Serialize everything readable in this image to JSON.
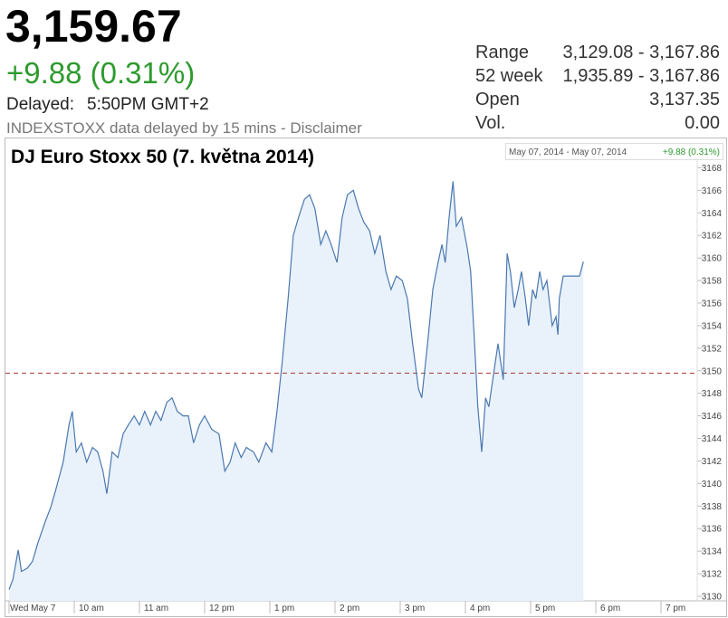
{
  "header": {
    "price": "3,159.67",
    "change": "+9.88 (0.31%)",
    "delayed_label": "Delayed:",
    "delayed_time": "5:50PM GMT+2",
    "note": "INDEXSTOXX data delayed by 15 mins - Disclaimer",
    "stats": [
      [
        "Range",
        "3,129.08 - 3,167.86"
      ],
      [
        "52 week",
        "1,935.89 - 3,167.86"
      ],
      [
        "Open",
        "3,137.35"
      ],
      [
        "Vol.",
        "0.00"
      ]
    ]
  },
  "chart_data": {
    "type": "line",
    "title": "DJ Euro Stoxx 50 (7. května 2014)",
    "range_label": "May 07, 2014 - May 07, 2014",
    "change_label": "+9.88 (0.31%)",
    "color": "#4a78b0",
    "fill_color": "#e9f2fb",
    "reference_line": 3149.79,
    "reference_color": "#a33a3a",
    "x": [
      9.0,
      9.06,
      9.14,
      9.19,
      9.28,
      9.36,
      9.44,
      9.56,
      9.64,
      9.72,
      9.83,
      9.92,
      9.97,
      10.03,
      10.11,
      10.19,
      10.28,
      10.36,
      10.44,
      10.5,
      10.58,
      10.67,
      10.75,
      10.83,
      10.92,
      11.0,
      11.08,
      11.17,
      11.25,
      11.33,
      11.42,
      11.5,
      11.58,
      11.67,
      11.75,
      11.83,
      11.92,
      12.0,
      12.11,
      12.22,
      12.31,
      12.39,
      12.47,
      12.56,
      12.64,
      12.75,
      12.83,
      12.94,
      13.03,
      13.11,
      13.19,
      13.28,
      13.36,
      13.44,
      13.53,
      13.61,
      13.69,
      13.78,
      13.86,
      13.94,
      14.03,
      14.11,
      14.19,
      14.28,
      14.36,
      14.44,
      14.53,
      14.61,
      14.69,
      14.78,
      14.86,
      14.94,
      15.03,
      15.11,
      15.19,
      15.28,
      15.33,
      15.42,
      15.5,
      15.58,
      15.64,
      15.69,
      15.75,
      15.81,
      15.86,
      15.94,
      16.03,
      16.08,
      16.14,
      16.19,
      16.25,
      16.31,
      16.36,
      16.42,
      16.5,
      16.58,
      16.64,
      16.69,
      16.75,
      16.81,
      16.86,
      16.92,
      16.97,
      17.03,
      17.08,
      17.14,
      17.19,
      17.25,
      17.33,
      17.39,
      17.42,
      17.44,
      17.5,
      17.61,
      17.75,
      17.81
    ],
    "values": [
      3130.6,
      3131.5,
      3134.1,
      3132.2,
      3132.5,
      3133.1,
      3134.7,
      3136.7,
      3137.9,
      3139.5,
      3141.9,
      3145.2,
      3146.4,
      3142.8,
      3143.6,
      3141.9,
      3143.2,
      3142.8,
      3141.1,
      3139.1,
      3142.8,
      3142.3,
      3144.4,
      3145.2,
      3146.0,
      3145.2,
      3146.4,
      3145.2,
      3146.4,
      3145.6,
      3147.2,
      3147.6,
      3146.4,
      3146.0,
      3146.0,
      3143.6,
      3145.2,
      3146.0,
      3144.8,
      3144.4,
      3141.1,
      3141.9,
      3143.6,
      3142.3,
      3143.2,
      3142.8,
      3141.9,
      3143.6,
      3142.8,
      3146.4,
      3150.8,
      3156.4,
      3162.0,
      3163.6,
      3165.2,
      3165.6,
      3164.4,
      3161.2,
      3162.4,
      3161.2,
      3159.6,
      3163.6,
      3165.6,
      3166.0,
      3164.4,
      3163.2,
      3162.4,
      3160.4,
      3162.0,
      3158.8,
      3157.2,
      3158.4,
      3158.0,
      3156.4,
      3152.4,
      3148.4,
      3147.6,
      3152.4,
      3157.2,
      3159.6,
      3161.2,
      3159.6,
      3163.6,
      3166.8,
      3162.8,
      3163.6,
      3160.8,
      3158.8,
      3152.4,
      3146.8,
      3142.8,
      3147.6,
      3146.8,
      3149.2,
      3152.4,
      3149.2,
      3160.4,
      3158.8,
      3155.6,
      3157.2,
      3158.8,
      3156.4,
      3154.0,
      3157.2,
      3156.4,
      3158.8,
      3157.2,
      3158.0,
      3154.0,
      3154.8,
      3153.2,
      3156.4,
      3158.4,
      3158.4,
      3158.4,
      3159.67
    ],
    "xlim": [
      9,
      19.5
    ],
    "xticks": [
      {
        "value": 9,
        "label": "Wed May 7"
      },
      {
        "value": 10,
        "label": "10 am"
      },
      {
        "value": 11,
        "label": "11 am"
      },
      {
        "value": 12,
        "label": "12 pm"
      },
      {
        "value": 13,
        "label": "1 pm"
      },
      {
        "value": 14,
        "label": "2 pm"
      },
      {
        "value": 15,
        "label": "3 pm"
      },
      {
        "value": 16,
        "label": "4 pm"
      },
      {
        "value": 17,
        "label": "5 pm"
      },
      {
        "value": 18,
        "label": "6 pm"
      },
      {
        "value": 19,
        "label": "7 pm"
      }
    ],
    "ylim": [
      3129.6,
      3170.2
    ],
    "yticks": [
      3130,
      3132,
      3134,
      3136,
      3138,
      3140,
      3142,
      3144,
      3146,
      3148,
      3150,
      3152,
      3154,
      3156,
      3158,
      3160,
      3162,
      3164,
      3166,
      3168
    ]
  }
}
